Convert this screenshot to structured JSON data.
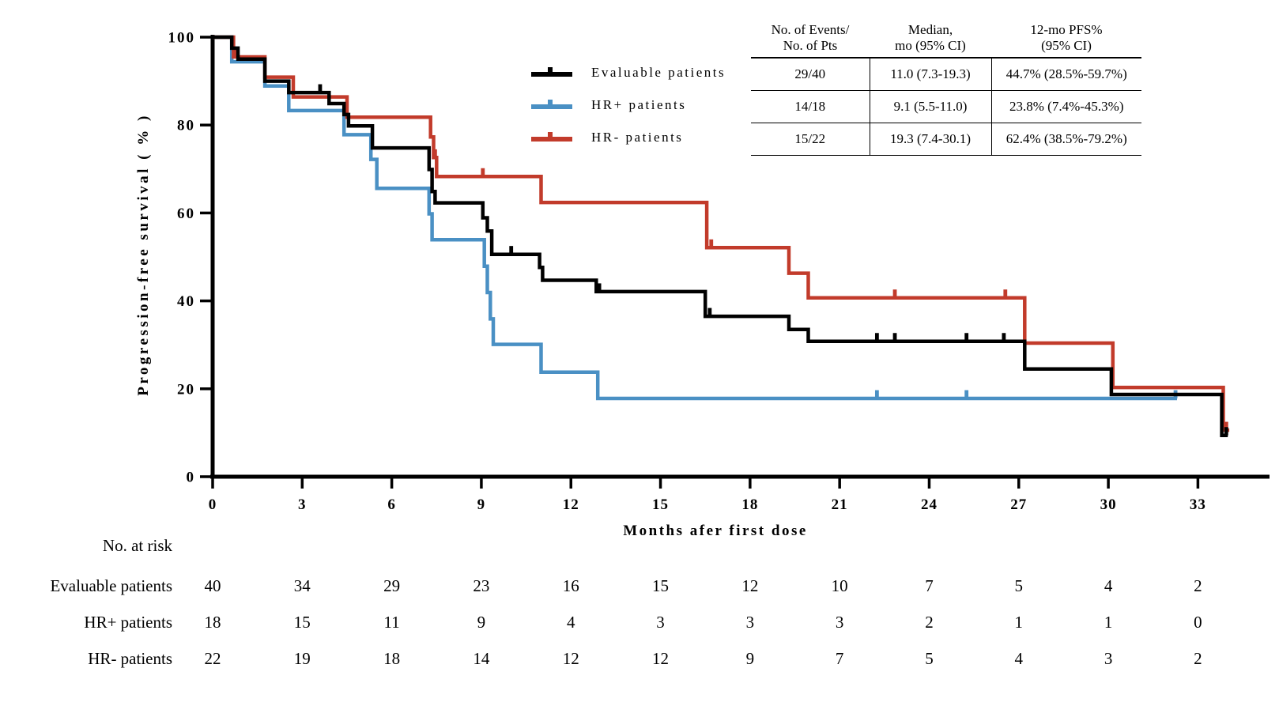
{
  "chart_data": {
    "type": "line",
    "subtype": "kaplan-meier-step",
    "title": "",
    "xlabel": "Months afer first dose",
    "ylabel": "Progression-free survival ( % )",
    "xlim": [
      0,
      35.4
    ],
    "ylim": [
      0,
      100
    ],
    "x_ticks": [
      0,
      3,
      6,
      9,
      12,
      15,
      18,
      21,
      24,
      27,
      30,
      33
    ],
    "y_ticks": [
      0,
      20,
      40,
      60,
      80,
      100
    ],
    "grid": false,
    "legend_position": "upper-center-left",
    "series": [
      {
        "name": "Evaluable patients",
        "color": "#000000",
        "points": [
          [
            0,
            100
          ],
          [
            0.64,
            97.5
          ],
          [
            0.85,
            95
          ],
          [
            1.75,
            90
          ],
          [
            2.55,
            87.4
          ],
          [
            3.9,
            84.9
          ],
          [
            4.4,
            82.4
          ],
          [
            4.55,
            79.8
          ],
          [
            5.35,
            74.8
          ],
          [
            7.25,
            69.9
          ],
          [
            7.35,
            64.9
          ],
          [
            7.45,
            62.3
          ],
          [
            9.05,
            58.9
          ],
          [
            9.2,
            55.9
          ],
          [
            9.35,
            50.6
          ],
          [
            10.95,
            47.6
          ],
          [
            11.05,
            44.7
          ],
          [
            12.85,
            42.1
          ],
          [
            16.5,
            36.5
          ],
          [
            19.3,
            33.5
          ],
          [
            19.95,
            30.8
          ],
          [
            27.2,
            24.5
          ],
          [
            30.1,
            18.7
          ],
          [
            33.8,
            9.4
          ]
        ],
        "end_time": 34.0,
        "censor_marks": [
          [
            3.6,
            87.4
          ],
          [
            10.0,
            50.6
          ],
          [
            12.95,
            42.1
          ],
          [
            16.65,
            36.5
          ],
          [
            22.25,
            30.8
          ],
          [
            22.85,
            30.8
          ],
          [
            25.25,
            30.8
          ],
          [
            26.5,
            30.8
          ],
          [
            33.95,
            9.4
          ]
        ]
      },
      {
        "name": "HR+ patients",
        "color": "#4a90c4",
        "points": [
          [
            0,
            100
          ],
          [
            0.64,
            94.4
          ],
          [
            1.75,
            88.9
          ],
          [
            2.55,
            83.3
          ],
          [
            4.4,
            77.8
          ],
          [
            5.3,
            72.2
          ],
          [
            5.5,
            65.6
          ],
          [
            7.25,
            59.8
          ],
          [
            7.35,
            53.9
          ],
          [
            9.1,
            47.9
          ],
          [
            9.2,
            41.9
          ],
          [
            9.3,
            35.9
          ],
          [
            9.4,
            30.1
          ],
          [
            11.0,
            23.8
          ],
          [
            12.9,
            17.8
          ]
        ],
        "end_time": 32.3,
        "censor_marks": [
          [
            22.25,
            17.8
          ],
          [
            25.25,
            17.8
          ],
          [
            32.25,
            17.8
          ]
        ]
      },
      {
        "name": "HR- patients",
        "color": "#c23b2b",
        "points": [
          [
            0,
            100
          ],
          [
            0.7,
            95.5
          ],
          [
            1.75,
            90.9
          ],
          [
            2.7,
            86.4
          ],
          [
            4.5,
            81.8
          ],
          [
            7.3,
            77.3
          ],
          [
            7.4,
            72.6
          ],
          [
            7.5,
            68.3
          ],
          [
            11.0,
            62.4
          ],
          [
            16.55,
            52.1
          ],
          [
            19.3,
            46.3
          ],
          [
            19.95,
            40.7
          ],
          [
            27.2,
            30.4
          ],
          [
            30.15,
            20.3
          ],
          [
            33.85,
            10.6
          ]
        ],
        "end_time": 34.05,
        "censor_marks": [
          [
            0.8,
            95.5
          ],
          [
            7.45,
            72.6
          ],
          [
            9.05,
            68.3
          ],
          [
            16.7,
            52.1
          ],
          [
            22.85,
            40.7
          ],
          [
            26.55,
            40.7
          ],
          [
            33.95,
            10.6
          ]
        ]
      }
    ]
  },
  "legend": {
    "items": [
      {
        "label": "Evaluable patients",
        "color": "#000000"
      },
      {
        "label": "HR+ patients",
        "color": "#4a90c4"
      },
      {
        "label": "HR- patients",
        "color": "#c23b2b"
      }
    ]
  },
  "stats_table": {
    "headers": [
      {
        "line1": "No. of Events/",
        "line2": "No. of Pts"
      },
      {
        "line1": "Median,",
        "line2": "mo (95% CI)"
      },
      {
        "line1": "12-mo PFS%",
        "line2": "(95% CI)"
      }
    ],
    "rows": [
      {
        "events": "29/40",
        "median": "11.0 (7.3-19.3)",
        "pfs12": "44.7% (28.5%-59.7%)"
      },
      {
        "events": "14/18",
        "median": "9.1 (5.5-11.0)",
        "pfs12": "23.8% (7.4%-45.3%)"
      },
      {
        "events": "15/22",
        "median": "19.3 (7.4-30.1)",
        "pfs12": "62.4% (38.5%-79.2%)"
      }
    ]
  },
  "risk_table": {
    "title": "No. at risk",
    "time_points": [
      0,
      3,
      6,
      9,
      12,
      15,
      18,
      21,
      24,
      27,
      30,
      33
    ],
    "rows": [
      {
        "label": "Evaluable patients",
        "counts": [
          40,
          34,
          29,
          23,
          16,
          15,
          12,
          10,
          7,
          5,
          4,
          2
        ]
      },
      {
        "label": "HR+ patients",
        "counts": [
          18,
          15,
          11,
          9,
          4,
          3,
          3,
          3,
          2,
          1,
          1,
          0
        ]
      },
      {
        "label": "HR- patients",
        "counts": [
          22,
          19,
          18,
          14,
          12,
          12,
          9,
          7,
          5,
          4,
          3,
          2
        ]
      }
    ]
  }
}
